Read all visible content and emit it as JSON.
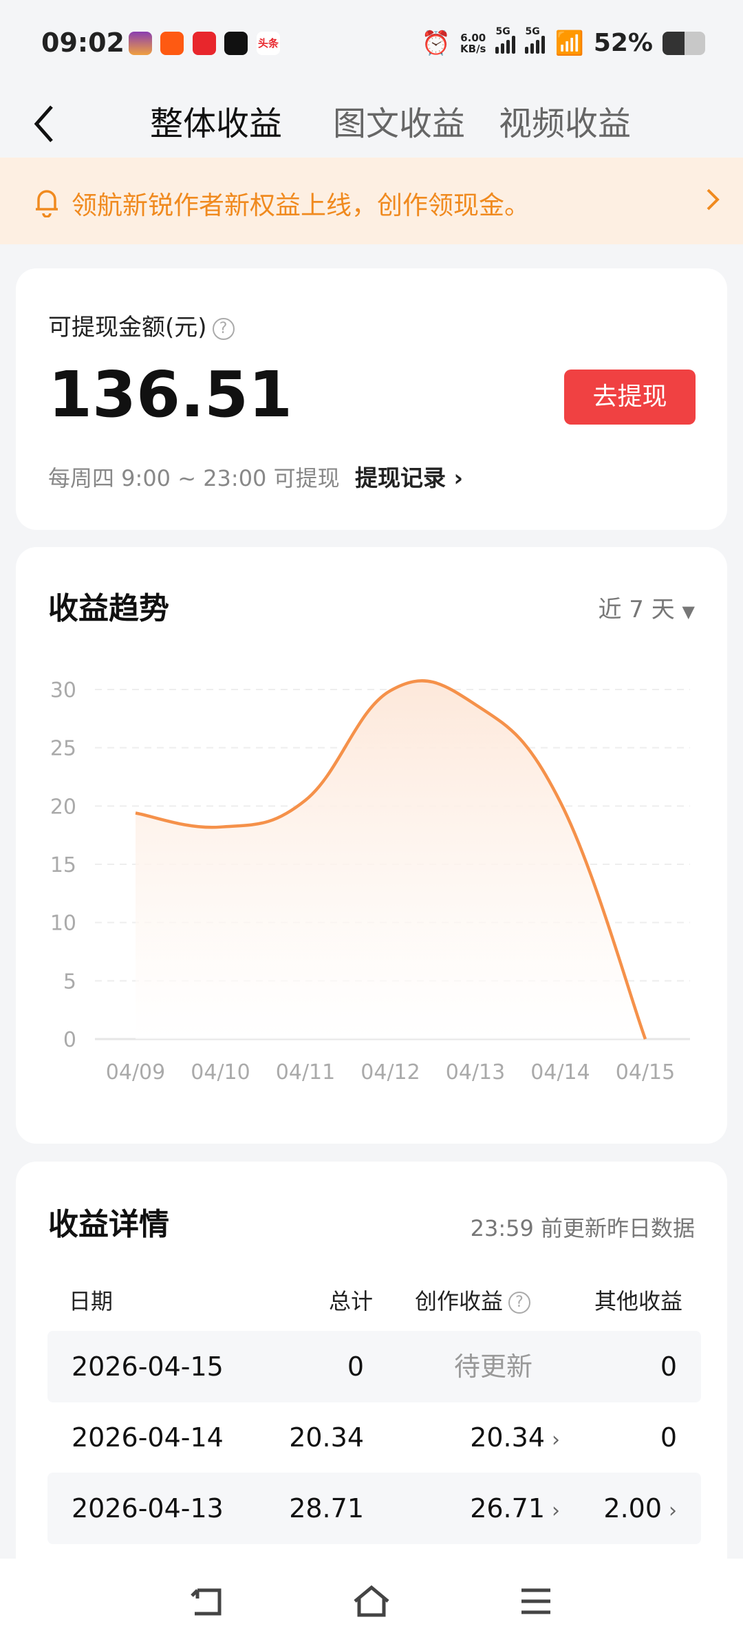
{
  "status": {
    "time": "09:02",
    "net_speed": "6.00",
    "net_unit": "KB/s",
    "sim1": "5G",
    "sim2": "5G",
    "battery": "52%",
    "battery_level": 52,
    "app_icons": [
      "app-icon-purple",
      "app-icon-kuaishou",
      "app-icon-jd",
      "app-icon-douyin",
      "app-icon-toutiao"
    ],
    "toutiao_label": "头条"
  },
  "nav": {
    "tabs": [
      {
        "label": "整体收益",
        "active": true
      },
      {
        "label": "图文收益"
      },
      {
        "label": "视频收益"
      }
    ]
  },
  "banner": {
    "text": "领航新锐作者新权益上线，创作领现金。",
    "color": "#f08a1f"
  },
  "withdraw": {
    "label": "可提现金额(元)",
    "amount": "136.51",
    "button": "去提现",
    "hint": "每周四 9:00 ~ 23:00 可提现",
    "record_link": "提现记录"
  },
  "trend": {
    "title": "收益趋势",
    "range": "近 7 天"
  },
  "chart_data": {
    "type": "area",
    "x": [
      "04/09",
      "04/10",
      "04/11",
      "04/12",
      "04/13",
      "04/14",
      "04/15"
    ],
    "values": [
      19.4,
      18.2,
      20.5,
      29.9,
      28.71,
      20.34,
      0
    ],
    "ylim": [
      0,
      30
    ],
    "yticks": [
      0,
      5,
      10,
      15,
      20,
      25,
      30
    ],
    "grid": true,
    "color": "#f5914a"
  },
  "details": {
    "title": "收益详情",
    "note": "23:59 前更新昨日数据",
    "headers": [
      "日期",
      "总计",
      "创作收益",
      "其他收益"
    ],
    "rows": [
      {
        "date": "2026-04-15",
        "total": "0",
        "creation": "待更新",
        "other": "0"
      },
      {
        "date": "2026-04-14",
        "total": "20.34",
        "creation": "20.34",
        "other": "0"
      },
      {
        "date": "2026-04-13",
        "total": "28.71",
        "creation": "26.71",
        "other": "2.00"
      }
    ]
  }
}
